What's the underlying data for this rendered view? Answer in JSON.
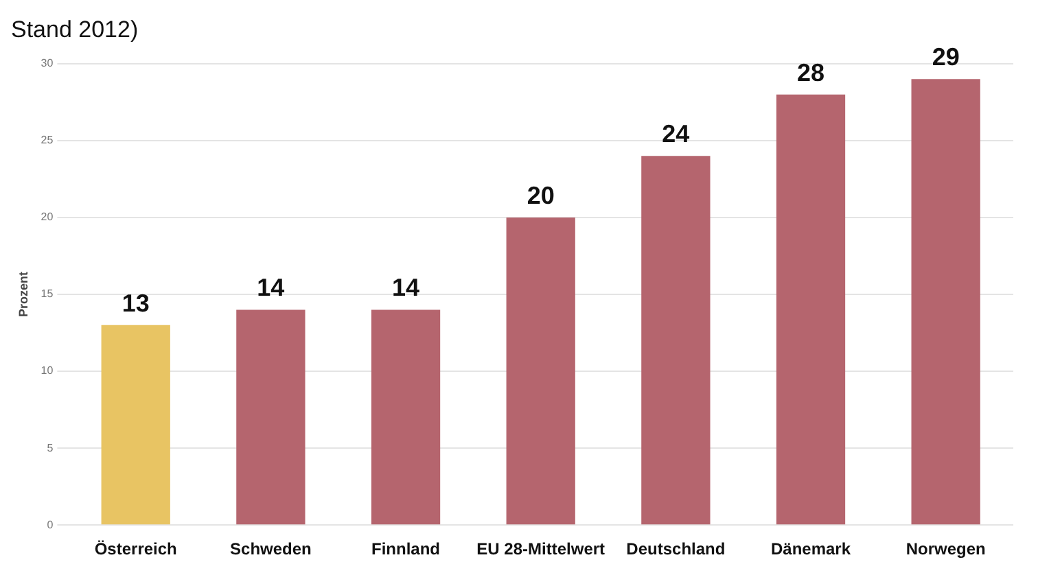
{
  "chart_data": {
    "type": "bar",
    "title": "Stand 2012)",
    "ylabel": "Prozent",
    "categories": [
      "Österreich",
      "Schweden",
      "Finnland",
      "EU 28-Mittelwert",
      "Deutschland",
      "Dänemark",
      "Norwegen"
    ],
    "values": [
      13,
      14,
      14,
      20,
      24,
      28,
      29
    ],
    "colors": [
      "#e8c463",
      "#b5656e",
      "#b5656e",
      "#b5656e",
      "#b5656e",
      "#b5656e",
      "#b5656e"
    ],
    "ylim": [
      0,
      30
    ],
    "yticks": [
      0,
      5,
      10,
      15,
      20,
      25,
      30
    ],
    "grid": "y",
    "data_labels": true
  }
}
